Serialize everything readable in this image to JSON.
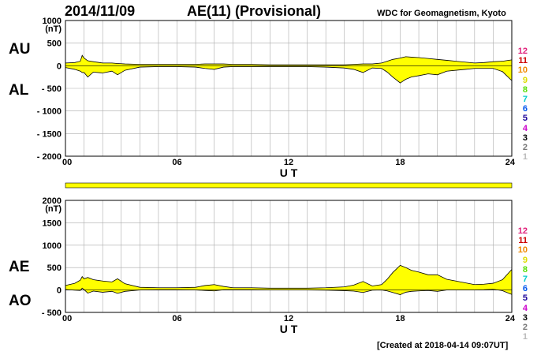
{
  "header": {
    "date": "2014/11/09",
    "title": "AE(11) (Provisional)",
    "organization": "WDC for Geomagnetism, Kyoto"
  },
  "footer": {
    "created": "[Created at 2018-04-14 09:07UT]"
  },
  "side_labels": {
    "top": {
      "upper": "AU",
      "lower": "AL"
    },
    "bottom": {
      "upper": "AE",
      "lower": "AO"
    }
  },
  "station_counts": [
    {
      "label": "12",
      "color": "#e0207a"
    },
    {
      "label": "11",
      "color": "#cc0000"
    },
    {
      "label": "10",
      "color": "#ee8800"
    },
    {
      "label": "9",
      "color": "#dddd00"
    },
    {
      "label": "8",
      "color": "#55dd00"
    },
    {
      "label": "7",
      "color": "#00cccc"
    },
    {
      "label": "6",
      "color": "#0055ee"
    },
    {
      "label": "5",
      "color": "#1a0099"
    },
    {
      "label": "4",
      "color": "#cc00cc"
    },
    {
      "label": "3",
      "color": "#000000"
    },
    {
      "label": "2",
      "color": "#777777"
    },
    {
      "label": "1",
      "color": "#bbbbbb"
    }
  ],
  "colors": {
    "fill": "#ffff00",
    "line": "#000000",
    "grid": "#aaaaaa",
    "bar": "#ffff00"
  },
  "chart_data": [
    {
      "type": "area",
      "ylabel": "(nT)",
      "xlabel": "U T",
      "xlim": [
        0,
        24
      ],
      "ylim": [
        -2000,
        1000
      ],
      "yticks": [
        1000,
        500,
        0,
        -500,
        -1000,
        -1500,
        -2000
      ],
      "ytick_labels": [
        "1000",
        "500",
        "0",
        "- 500",
        "- 1000",
        "- 1500",
        "- 2000"
      ],
      "xticks": [
        0,
        6,
        12,
        18,
        24
      ],
      "xtick_labels": [
        "00",
        "06",
        "12",
        "18",
        "24"
      ],
      "x": [
        0,
        0.5,
        0.8,
        0.9,
        1.0,
        1.2,
        1.5,
        2.0,
        2.5,
        2.8,
        3.2,
        4,
        5,
        6,
        7,
        7.5,
        8,
        8.5,
        9,
        10,
        11,
        12,
        13,
        14,
        15,
        15.5,
        16,
        16.5,
        17,
        17.3,
        17.6,
        18,
        18.3,
        18.6,
        19,
        19.5,
        20,
        20.5,
        21,
        21.5,
        22,
        22.5,
        23,
        23.5,
        24
      ],
      "series": [
        {
          "name": "AU",
          "values": [
            60,
            70,
            100,
            230,
            170,
            110,
            90,
            60,
            60,
            50,
            40,
            30,
            30,
            30,
            30,
            40,
            40,
            40,
            30,
            30,
            20,
            20,
            20,
            20,
            20,
            30,
            40,
            40,
            60,
            100,
            140,
            170,
            200,
            190,
            180,
            160,
            140,
            120,
            100,
            80,
            60,
            70,
            90,
            100,
            130
          ]
        },
        {
          "name": "AL",
          "values": [
            -40,
            -80,
            -120,
            -150,
            -150,
            -250,
            -140,
            -160,
            -120,
            -200,
            -100,
            -30,
            -20,
            -20,
            -30,
            -60,
            -80,
            -30,
            -20,
            -20,
            -20,
            -20,
            -20,
            -30,
            -50,
            -80,
            -150,
            -50,
            -60,
            -140,
            -250,
            -380,
            -300,
            -250,
            -220,
            -180,
            -200,
            -120,
            -100,
            -80,
            -60,
            -60,
            -60,
            -130,
            -330
          ]
        }
      ]
    },
    {
      "type": "area",
      "ylabel": "(nT)",
      "xlabel": "U T",
      "xlim": [
        0,
        24
      ],
      "ylim": [
        -500,
        2000
      ],
      "yticks": [
        2000,
        1500,
        1000,
        500,
        0,
        -500
      ],
      "ytick_labels": [
        "2000",
        "1500",
        "1000",
        "500",
        "0",
        "- 500"
      ],
      "xticks": [
        0,
        6,
        12,
        18,
        24
      ],
      "xtick_labels": [
        "00",
        "06",
        "12",
        "18",
        "24"
      ],
      "x": [
        0,
        0.5,
        0.8,
        0.9,
        1.0,
        1.2,
        1.5,
        2.0,
        2.5,
        2.8,
        3.2,
        4,
        5,
        6,
        7,
        7.5,
        8,
        8.5,
        9,
        10,
        11,
        12,
        13,
        14,
        15,
        15.5,
        16,
        16.5,
        17,
        17.3,
        17.6,
        18,
        18.3,
        18.6,
        19,
        19.5,
        20,
        20.5,
        21,
        21.5,
        22,
        22.5,
        23,
        23.5,
        24
      ],
      "series": [
        {
          "name": "AE",
          "values": [
            100,
            150,
            220,
            300,
            250,
            280,
            230,
            200,
            180,
            250,
            140,
            60,
            50,
            50,
            60,
            100,
            120,
            80,
            50,
            50,
            40,
            40,
            40,
            50,
            70,
            110,
            190,
            90,
            120,
            240,
            390,
            550,
            500,
            440,
            400,
            340,
            340,
            240,
            200,
            160,
            120,
            130,
            150,
            230,
            460
          ]
        },
        {
          "name": "AO",
          "values": [
            10,
            -5,
            -10,
            40,
            10,
            -70,
            -25,
            -50,
            -30,
            -75,
            -30,
            0,
            5,
            5,
            0,
            -10,
            -20,
            5,
            5,
            5,
            0,
            0,
            0,
            -5,
            -15,
            -25,
            -55,
            -5,
            0,
            -20,
            -55,
            -105,
            -50,
            -30,
            -20,
            -10,
            -30,
            0,
            0,
            0,
            0,
            5,
            15,
            -15,
            -100
          ]
        }
      ]
    }
  ]
}
